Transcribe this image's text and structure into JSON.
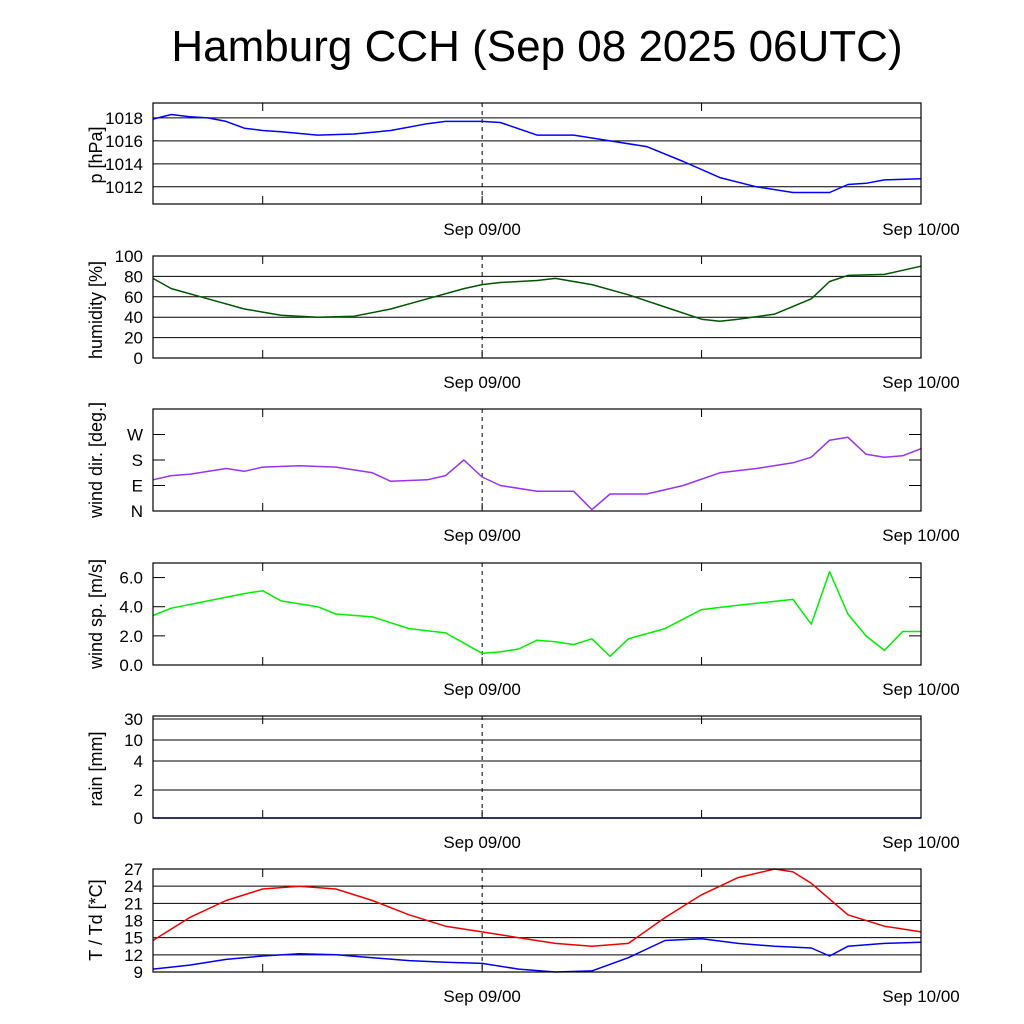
{
  "title": "Hamburg CCH (Sep 08 2025 06UTC)",
  "x_axis": {
    "start": "Sep 08 2025 06UTC",
    "end": "Sep 10 2025 00UTC",
    "tick_labels": [
      {
        "time": "Sep 09 00UTC",
        "label": "Sep 09/00"
      },
      {
        "time": "Sep 10 00UTC",
        "label": "Sep 10/00"
      }
    ],
    "minor_ticks": [
      "Sep 08 12UTC",
      "Sep 09 12UTC"
    ],
    "dashed_marker": "Sep 09 00UTC"
  },
  "chart_data": [
    {
      "id": "pressure",
      "type": "line",
      "ylabel": "p [hPa]",
      "ylim": [
        1010.5,
        1019.3
      ],
      "yticks": [
        1012,
        1014,
        1016,
        1018
      ],
      "tick_labels": [
        "1012",
        "1014",
        "1016",
        "1018"
      ],
      "grid": true,
      "series": [
        {
          "color": "#0000ff",
          "x": [
            "Sep 08 06UTC",
            "Sep 08 07UTC",
            "Sep 08 08UTC",
            "Sep 08 09UTC",
            "Sep 08 10UTC",
            "Sep 08 11UTC",
            "Sep 08 12UTC",
            "Sep 08 13UTC",
            "Sep 08 15UTC",
            "Sep 08 17UTC",
            "Sep 08 19UTC",
            "Sep 08 21UTC",
            "Sep 08 22UTC",
            "Sep 09 00UTC",
            "Sep 09 01UTC",
            "Sep 09 03UTC",
            "Sep 09 05UTC",
            "Sep 09 07UTC",
            "Sep 09 09UTC",
            "Sep 09 11UTC",
            "Sep 09 13UTC",
            "Sep 09 15UTC",
            "Sep 09 17UTC",
            "Sep 09 18UTC",
            "Sep 09 19UTC",
            "Sep 09 20UTC",
            "Sep 09 21UTC",
            "Sep 09 22UTC",
            "Sep 10 00UTC"
          ],
          "values": [
            1017.9,
            1018.3,
            1018.1,
            1018.0,
            1017.7,
            1017.1,
            1016.9,
            1016.8,
            1016.5,
            1016.6,
            1016.9,
            1017.5,
            1017.7,
            1017.7,
            1017.6,
            1016.5,
            1016.5,
            1016.0,
            1015.5,
            1014.2,
            1012.8,
            1012.0,
            1011.5,
            1011.5,
            1011.5,
            1012.2,
            1012.3,
            1012.6,
            1012.7
          ]
        }
      ]
    },
    {
      "id": "humidity",
      "type": "line",
      "ylabel": "humidity [%]",
      "ylim": [
        0,
        100
      ],
      "yticks": [
        0,
        20,
        40,
        60,
        80,
        100
      ],
      "tick_labels": [
        "0",
        "20",
        "40",
        "60",
        "80",
        "100"
      ],
      "grid": true,
      "series": [
        {
          "color": "#005500",
          "x": [
            "Sep 08 06UTC",
            "Sep 08 07UTC",
            "Sep 08 09UTC",
            "Sep 08 11UTC",
            "Sep 08 13UTC",
            "Sep 08 15UTC",
            "Sep 08 17UTC",
            "Sep 08 19UTC",
            "Sep 08 21UTC",
            "Sep 08 23UTC",
            "Sep 09 00UTC",
            "Sep 09 01UTC",
            "Sep 09 03UTC",
            "Sep 09 04UTC",
            "Sep 09 06UTC",
            "Sep 09 08UTC",
            "Sep 09 10UTC",
            "Sep 09 12UTC",
            "Sep 09 13UTC",
            "Sep 09 14UTC",
            "Sep 09 16UTC",
            "Sep 09 18UTC",
            "Sep 09 19UTC",
            "Sep 09 20UTC",
            "Sep 09 22UTC",
            "Sep 10 00UTC"
          ],
          "values": [
            78,
            68,
            58,
            48,
            42,
            40,
            41,
            48,
            58,
            68,
            72,
            74,
            76,
            78,
            72,
            62,
            50,
            38,
            36,
            38,
            43,
            58,
            75,
            81,
            82,
            90
          ]
        }
      ]
    },
    {
      "id": "wind_direction",
      "type": "line",
      "ylabel": "wind dir. [deg.]",
      "ylim": [
        0,
        360
      ],
      "yticks": [
        0,
        90,
        180,
        270
      ],
      "tick_labels": [
        "N",
        "E",
        "S",
        "W"
      ],
      "grid": false,
      "series": [
        {
          "color": "#9933ee",
          "x": [
            "Sep 08 06UTC",
            "Sep 08 07UTC",
            "Sep 08 08UTC",
            "Sep 08 10UTC",
            "Sep 08 11UTC",
            "Sep 08 12UTC",
            "Sep 08 14UTC",
            "Sep 08 16UTC",
            "Sep 08 18UTC",
            "Sep 08 19UTC",
            "Sep 08 21UTC",
            "Sep 08 22UTC",
            "Sep 08 23UTC",
            "Sep 09 00UTC",
            "Sep 09 01UTC",
            "Sep 09 03UTC",
            "Sep 09 05UTC",
            "Sep 09 06UTC",
            "Sep 09 07UTC",
            "Sep 09 09UTC",
            "Sep 09 11UTC",
            "Sep 09 13UTC",
            "Sep 09 15UTC",
            "Sep 09 17UTC",
            "Sep 09 18UTC",
            "Sep 09 19UTC",
            "Sep 09 20UTC",
            "Sep 09 21UTC",
            "Sep 09 22UTC",
            "Sep 09 23UTC",
            "Sep 10 00UTC"
          ],
          "values": [
            110,
            125,
            130,
            150,
            140,
            155,
            160,
            155,
            135,
            105,
            110,
            125,
            180,
            120,
            90,
            70,
            70,
            5,
            60,
            60,
            90,
            135,
            150,
            170,
            190,
            250,
            260,
            200,
            190,
            195,
            220
          ]
        }
      ]
    },
    {
      "id": "wind_speed",
      "type": "line",
      "ylabel": "wind sp. [m/s]",
      "ylim": [
        0,
        7
      ],
      "yticks": [
        0,
        2,
        4,
        6
      ],
      "tick_labels": [
        "0.0",
        "2.0",
        "4.0",
        "6.0"
      ],
      "grid": false,
      "series": [
        {
          "color": "#00ee00",
          "x": [
            "Sep 08 06UTC",
            "Sep 08 07UTC",
            "Sep 08 09UTC",
            "Sep 08 11UTC",
            "Sep 08 12UTC",
            "Sep 08 13UTC",
            "Sep 08 15UTC",
            "Sep 08 16UTC",
            "Sep 08 18UTC",
            "Sep 08 20UTC",
            "Sep 08 22UTC",
            "Sep 09 00UTC",
            "Sep 09 01UTC",
            "Sep 09 02UTC",
            "Sep 09 03UTC",
            "Sep 09 04UTC",
            "Sep 09 05UTC",
            "Sep 09 06UTC",
            "Sep 09 07UTC",
            "Sep 09 08UTC",
            "Sep 09 10UTC",
            "Sep 09 12UTC",
            "Sep 09 14UTC",
            "Sep 09 17UTC",
            "Sep 09 18UTC",
            "Sep 09 19UTC",
            "Sep 09 20UTC",
            "Sep 09 21UTC",
            "Sep 09 22UTC",
            "Sep 09 23UTC",
            "Sep 10 00UTC"
          ],
          "values": [
            3.4,
            3.9,
            4.4,
            4.9,
            5.1,
            4.4,
            4.0,
            3.5,
            3.3,
            2.5,
            2.2,
            0.8,
            0.9,
            1.1,
            1.7,
            1.6,
            1.4,
            1.8,
            0.6,
            1.8,
            2.5,
            3.8,
            4.1,
            4.5,
            2.8,
            6.4,
            3.5,
            2.0,
            1.0,
            2.3,
            2.3
          ]
        }
      ]
    },
    {
      "id": "rain",
      "type": "line",
      "ylabel": "rain [mm]",
      "ylim": [
        0,
        30
      ],
      "yticks": [
        0,
        2,
        4,
        10,
        30
      ],
      "tick_labels": [
        "0",
        "2",
        "4",
        "10",
        "30"
      ],
      "grid": true,
      "series": [
        {
          "color": "#0000ff",
          "x": [
            "Sep 08 06UTC",
            "Sep 10 00UTC"
          ],
          "values": [
            0,
            0
          ]
        }
      ]
    },
    {
      "id": "temperature_dewpoint",
      "type": "line",
      "ylabel": "T / Td [*C]",
      "ylim": [
        9,
        27
      ],
      "yticks": [
        9,
        12,
        15,
        18,
        21,
        24,
        27
      ],
      "tick_labels": [
        "9",
        "12",
        "15",
        "18",
        "21",
        "24",
        "27"
      ],
      "grid": true,
      "series": [
        {
          "name": "T",
          "color": "#ee0000",
          "x": [
            "Sep 08 06UTC",
            "Sep 08 08UTC",
            "Sep 08 10UTC",
            "Sep 08 12UTC",
            "Sep 08 14UTC",
            "Sep 08 16UTC",
            "Sep 08 18UTC",
            "Sep 08 20UTC",
            "Sep 08 22UTC",
            "Sep 09 00UTC",
            "Sep 09 02UTC",
            "Sep 09 04UTC",
            "Sep 09 06UTC",
            "Sep 09 08UTC",
            "Sep 09 10UTC",
            "Sep 09 12UTC",
            "Sep 09 14UTC",
            "Sep 09 16UTC",
            "Sep 09 17UTC",
            "Sep 09 18UTC",
            "Sep 09 20UTC",
            "Sep 09 22UTC",
            "Sep 10 00UTC"
          ],
          "values": [
            14.5,
            18.5,
            21.5,
            23.5,
            24.0,
            23.5,
            21.5,
            19.0,
            17.0,
            16.0,
            15.0,
            14.0,
            13.5,
            14.0,
            18.5,
            22.5,
            25.5,
            27.0,
            26.5,
            24.5,
            19.0,
            17.0,
            16.0
          ]
        },
        {
          "name": "Td",
          "color": "#0000ee",
          "x": [
            "Sep 08 06UTC",
            "Sep 08 08UTC",
            "Sep 08 10UTC",
            "Sep 08 12UTC",
            "Sep 08 14UTC",
            "Sep 08 16UTC",
            "Sep 08 18UTC",
            "Sep 08 20UTC",
            "Sep 08 22UTC",
            "Sep 09 00UTC",
            "Sep 09 02UTC",
            "Sep 09 04UTC",
            "Sep 09 06UTC",
            "Sep 09 08UTC",
            "Sep 09 10UTC",
            "Sep 09 12UTC",
            "Sep 09 14UTC",
            "Sep 09 16UTC",
            "Sep 09 18UTC",
            "Sep 09 19UTC",
            "Sep 09 20UTC",
            "Sep 09 22UTC",
            "Sep 10 00UTC"
          ],
          "values": [
            9.5,
            10.2,
            11.2,
            11.8,
            12.2,
            12.0,
            11.5,
            11.0,
            10.7,
            10.5,
            9.5,
            9.0,
            9.2,
            11.5,
            14.5,
            14.8,
            14.0,
            13.5,
            13.2,
            11.8,
            13.5,
            14.0,
            14.2
          ]
        }
      ]
    }
  ]
}
